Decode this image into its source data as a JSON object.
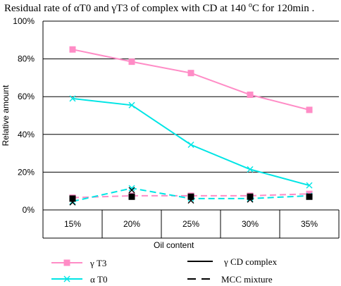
{
  "chart_data": {
    "type": "line",
    "title_parts": {
      "lead": "Residual rate of αT0 and γT3 of complex with CD  at 140 ",
      "degree": "o",
      "tail": "C for 120min ."
    },
    "xlabel": "Oil content",
    "ylabel": "Relative amount",
    "categories": [
      "15%",
      "20%",
      "25%",
      "30%",
      "35%"
    ],
    "y_ticks": [
      "0%",
      "20%",
      "40%",
      "60%",
      "80%",
      "100%"
    ],
    "ylim": [
      0,
      100
    ],
    "grid": true,
    "legend_position": "bottom",
    "series": [
      {
        "name": "γT3",
        "group": "γCD complex",
        "line_style": "solid",
        "marker": "square",
        "color": "#FF8CC6",
        "values": [
          85,
          78.5,
          72.5,
          61,
          53
        ]
      },
      {
        "name": "αT0",
        "group": "γCD complex",
        "line_style": "solid",
        "marker": "x",
        "color": "#00E5E5",
        "values": [
          59,
          55.5,
          34.5,
          21.5,
          13
        ]
      },
      {
        "name": "γT3",
        "group": "MCC mixture",
        "line_style": "dashed",
        "marker": "square",
        "color": "#FF8CC6",
        "values": [
          6.5,
          7.5,
          7.5,
          7.5,
          8.5
        ]
      },
      {
        "name": "αT0",
        "group": "MCC mixture",
        "line_style": "dashed",
        "marker": "x",
        "color": "#00E5E5",
        "values": [
          4.5,
          11.5,
          6,
          6,
          7.5
        ]
      }
    ],
    "black_markers": [
      {
        "marker": "x",
        "values": [
          4,
          10.5,
          5,
          5.5,
          7
        ]
      },
      {
        "marker": "square",
        "values": [
          6,
          7,
          7,
          7,
          7
        ]
      }
    ],
    "legend": {
      "series_entries": [
        {
          "label": "γ T3",
          "marker": "square",
          "color": "#FF8CC6"
        },
        {
          "label": "α T0",
          "marker": "x",
          "color": "#00E5E5"
        }
      ],
      "style_entries": [
        {
          "label": "γ CD complex",
          "line_style": "solid"
        },
        {
          "label": "MCC mixture",
          "line_style": "dashed"
        }
      ]
    }
  }
}
